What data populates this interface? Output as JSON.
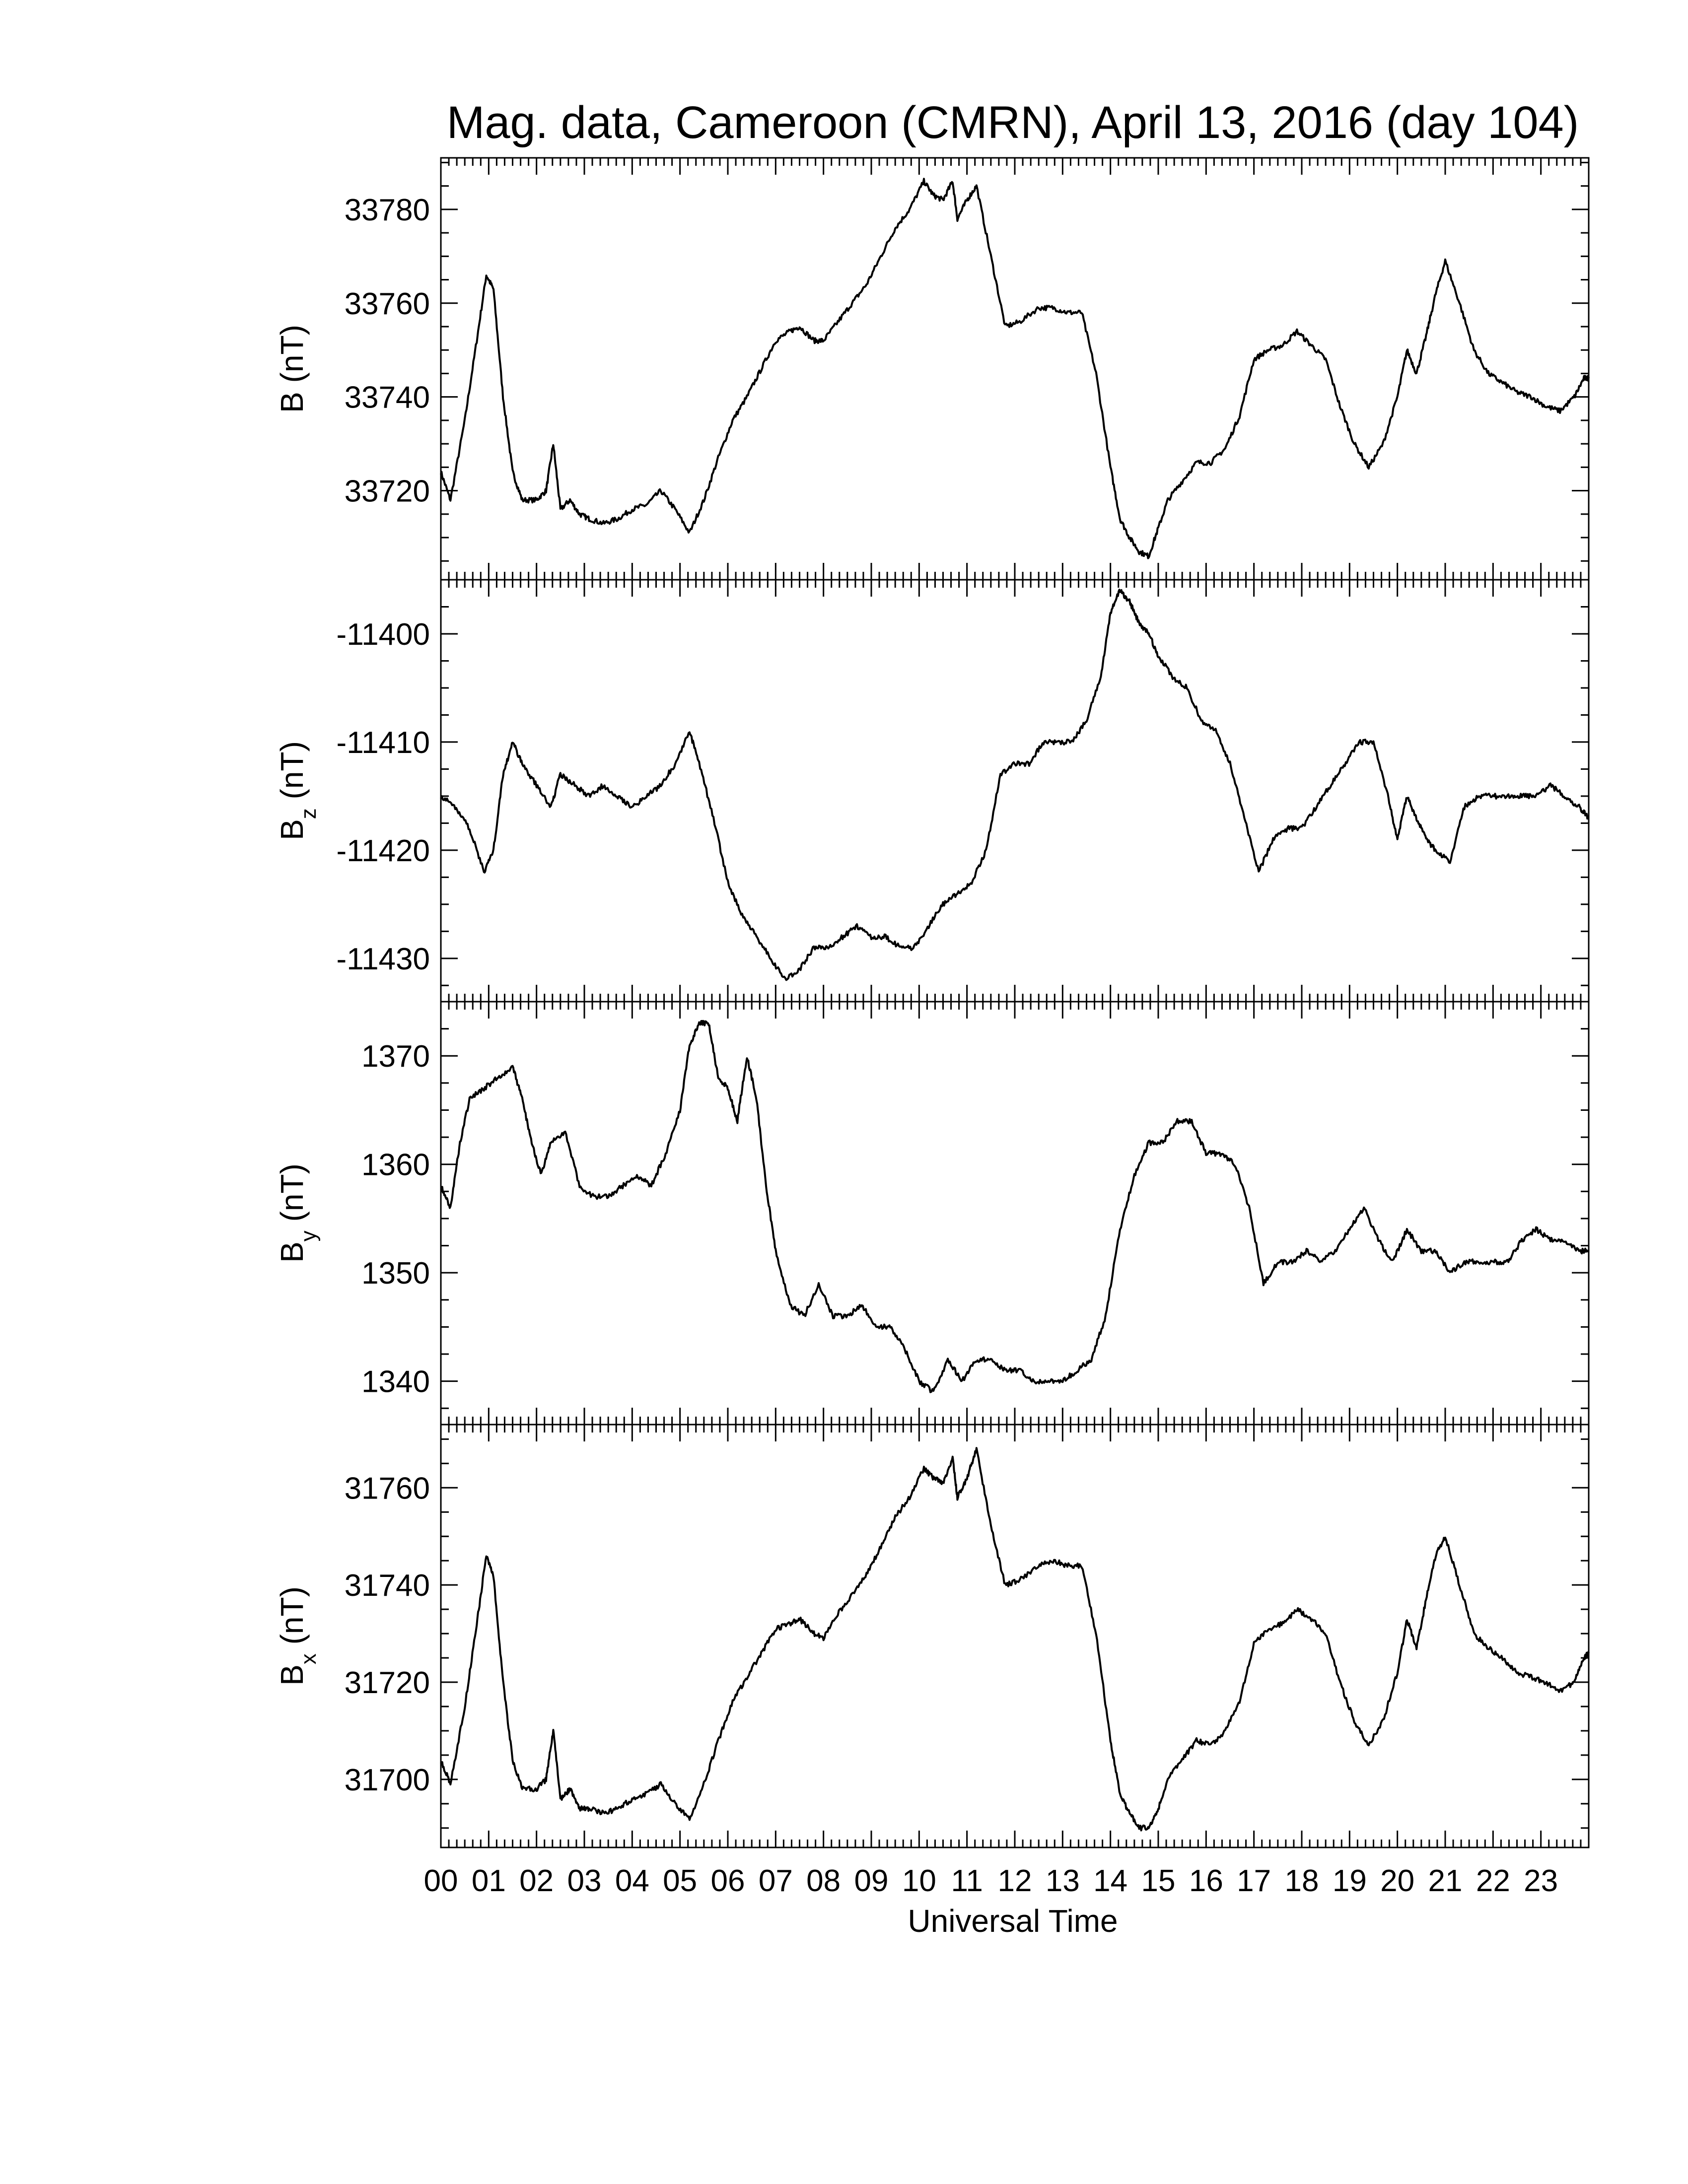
{
  "chart_data": {
    "type": "line",
    "title": "Mag. data, Cameroon (CMRN), April 13, 2016 (day 104)",
    "xlabel": "Universal Time",
    "xlim": [
      0,
      24
    ],
    "xticks": [
      "00",
      "01",
      "02",
      "03",
      "04",
      "05",
      "06",
      "07",
      "08",
      "09",
      "10",
      "11",
      "12",
      "13",
      "14",
      "15",
      "16",
      "17",
      "18",
      "19",
      "20",
      "21",
      "22",
      "23"
    ],
    "panels": [
      {
        "id": "B",
        "ylabel": "B",
        "ylabel_sub": "",
        "ylabel_unit": " (nT)",
        "ylim": [
          33701,
          33791
        ],
        "yticks": [
          33720,
          33740,
          33760,
          33780
        ],
        "x": [
          0.0,
          0.2,
          0.5,
          0.75,
          0.95,
          1.1,
          1.3,
          1.5,
          1.7,
          2.0,
          2.2,
          2.35,
          2.5,
          2.7,
          2.9,
          3.1,
          3.4,
          3.7,
          4.0,
          4.3,
          4.6,
          4.9,
          5.2,
          5.5,
          5.8,
          6.1,
          6.4,
          6.7,
          7.0,
          7.3,
          7.5,
          7.8,
          8.0,
          8.3,
          8.6,
          8.9,
          9.2,
          9.5,
          9.8,
          10.1,
          10.3,
          10.5,
          10.7,
          10.8,
          11.0,
          11.2,
          11.5,
          11.8,
          12.1,
          12.5,
          12.8,
          13.1,
          13.4,
          13.7,
          14.0,
          14.2,
          14.4,
          14.6,
          14.8,
          15.0,
          15.2,
          15.5,
          15.8,
          16.1,
          16.4,
          16.7,
          17.0,
          17.3,
          17.6,
          17.9,
          18.2,
          18.5,
          18.8,
          19.1,
          19.4,
          19.7,
          20.0,
          20.2,
          20.4,
          20.6,
          20.8,
          21.0,
          21.3,
          21.6,
          21.9,
          22.2,
          22.5,
          22.8,
          23.1,
          23.4,
          23.7,
          23.9,
          24.0
        ],
        "y": [
          33724,
          33718,
          33735,
          33752,
          33766,
          33763,
          33740,
          33724,
          33718,
          33718,
          33720,
          33730,
          33716,
          33718,
          33715,
          33714,
          33713,
          33714,
          33716,
          33717,
          33720,
          33716,
          33711,
          33718,
          33727,
          33735,
          33740,
          33746,
          33752,
          33754,
          33755,
          33752,
          33752,
          33756,
          33760,
          33764,
          33770,
          33776,
          33780,
          33786,
          33783,
          33782,
          33786,
          33778,
          33782,
          33785,
          33770,
          33755,
          33756,
          33759,
          33759,
          33758,
          33758,
          33745,
          33725,
          33714,
          33710,
          33707,
          33706,
          33712,
          33718,
          33722,
          33726,
          33726,
          33729,
          33736,
          33748,
          33750,
          33751,
          33754,
          33751,
          33748,
          33738,
          33730,
          33725,
          33730,
          33740,
          33750,
          33745,
          33753,
          33762,
          33769,
          33760,
          33750,
          33745,
          33743,
          33741,
          33740,
          33738,
          33737,
          33740,
          33744,
          33744
        ]
      },
      {
        "id": "Bz",
        "ylabel": "B",
        "ylabel_sub": "z",
        "ylabel_unit": " (nT)",
        "ylim": [
          -11434,
          -11395
        ],
        "yticks": [
          -11400,
          -11410,
          -11420,
          -11430
        ],
        "x": [
          0.0,
          0.3,
          0.6,
          0.9,
          1.1,
          1.3,
          1.5,
          1.7,
          2.0,
          2.3,
          2.5,
          2.8,
          3.1,
          3.4,
          3.7,
          4.0,
          4.3,
          4.6,
          4.9,
          5.2,
          5.4,
          5.7,
          6.0,
          6.3,
          6.6,
          6.9,
          7.2,
          7.5,
          7.8,
          8.1,
          8.4,
          8.7,
          9.0,
          9.3,
          9.6,
          9.9,
          10.2,
          10.5,
          10.8,
          11.1,
          11.4,
          11.7,
          12.0,
          12.3,
          12.6,
          12.9,
          13.2,
          13.5,
          13.8,
          14.0,
          14.2,
          14.4,
          14.6,
          14.8,
          15.0,
          15.3,
          15.6,
          15.9,
          16.2,
          16.5,
          16.8,
          17.1,
          17.4,
          17.7,
          18.0,
          18.3,
          18.6,
          18.9,
          19.2,
          19.5,
          19.8,
          20.0,
          20.2,
          20.4,
          20.6,
          20.8,
          21.1,
          21.4,
          21.7,
          22.0,
          22.3,
          22.6,
          22.9,
          23.2,
          23.5,
          23.8,
          24.0
        ],
        "y": [
          -11415,
          -11416,
          -11418,
          -11422,
          -11420,
          -11413,
          -11410,
          -11412,
          -11414,
          -11416,
          -11413,
          -11414,
          -11415,
          -11414,
          -11415,
          -11416,
          -11415,
          -11414,
          -11412,
          -11409,
          -11412,
          -11417,
          -11423,
          -11426,
          -11428,
          -11430,
          -11432,
          -11431,
          -11429,
          -11429,
          -11428,
          -11427,
          -11428,
          -11428,
          -11429,
          -11429,
          -11427,
          -11425,
          -11424,
          -11423,
          -11420,
          -11413,
          -11412,
          -11412,
          -11410,
          -11410,
          -11410,
          -11408,
          -11404,
          -11398,
          -11396,
          -11397,
          -11399,
          -11400,
          -11402,
          -11404,
          -11405,
          -11408,
          -11409,
          -11412,
          -11417,
          -11422,
          -11419,
          -11418,
          -11418,
          -11416,
          -11414,
          -11412,
          -11410,
          -11410,
          -11415,
          -11419,
          -11415,
          -11417,
          -11419,
          -11420,
          -11421,
          -11416,
          -11415,
          -11415,
          -11415,
          -11415,
          -11415,
          -11414,
          -11415,
          -11416,
          -11417
        ]
      },
      {
        "id": "By",
        "ylabel": "B",
        "ylabel_sub": "y",
        "ylabel_unit": " (nT)",
        "ylim": [
          1336,
          1375
        ],
        "yticks": [
          1340,
          1350,
          1360,
          1370
        ],
        "x": [
          0.0,
          0.2,
          0.4,
          0.6,
          0.9,
          1.2,
          1.5,
          1.7,
          1.9,
          2.1,
          2.3,
          2.6,
          2.9,
          3.2,
          3.5,
          3.8,
          4.1,
          4.4,
          4.7,
          5.0,
          5.2,
          5.4,
          5.6,
          5.8,
          6.0,
          6.2,
          6.4,
          6.6,
          6.8,
          7.0,
          7.3,
          7.6,
          7.9,
          8.2,
          8.5,
          8.8,
          9.1,
          9.4,
          9.7,
          10.0,
          10.3,
          10.6,
          10.9,
          11.2,
          11.5,
          11.8,
          12.1,
          12.4,
          12.7,
          13.0,
          13.3,
          13.6,
          13.9,
          14.2,
          14.5,
          14.8,
          15.1,
          15.4,
          15.7,
          16.0,
          16.3,
          16.6,
          16.9,
          17.2,
          17.5,
          17.8,
          18.1,
          18.4,
          18.7,
          19.0,
          19.3,
          19.6,
          19.9,
          20.2,
          20.5,
          20.8,
          21.1,
          21.4,
          21.7,
          22.0,
          22.3,
          22.6,
          22.9,
          23.2,
          23.5,
          23.8,
          24.0
        ],
        "y": [
          1358,
          1356,
          1362,
          1366,
          1367,
          1368,
          1369,
          1366,
          1362,
          1359,
          1362,
          1363,
          1358,
          1357,
          1357,
          1358,
          1359,
          1358,
          1361,
          1365,
          1371,
          1373,
          1373,
          1368,
          1367,
          1364,
          1370,
          1366,
          1358,
          1352,
          1347,
          1346,
          1349,
          1346,
          1346,
          1347,
          1345,
          1345,
          1343,
          1340,
          1339,
          1342,
          1340,
          1342,
          1342,
          1341,
          1341,
          1340,
          1340,
          1340,
          1341,
          1342,
          1346,
          1354,
          1359,
          1362,
          1362,
          1364,
          1364,
          1361,
          1361,
          1360,
          1356,
          1349,
          1351,
          1351,
          1352,
          1351,
          1352,
          1354,
          1356,
          1353,
          1351,
          1354,
          1352,
          1352,
          1350,
          1351,
          1351,
          1351,
          1351,
          1353,
          1354,
          1353,
          1353,
          1352,
          1352
        ]
      },
      {
        "id": "Bx",
        "ylabel": "B",
        "ylabel_sub": "x",
        "ylabel_unit": " (nT)",
        "ylim": [
          1686,
          1773
        ],
        "ylim_note": "",
        "ylim_full": [
          31686,
          31773
        ],
        "yticks": [
          31700,
          31720,
          31740,
          31760
        ],
        "x": [
          0.0,
          0.2,
          0.5,
          0.75,
          0.95,
          1.1,
          1.3,
          1.5,
          1.7,
          2.0,
          2.2,
          2.35,
          2.5,
          2.7,
          2.9,
          3.1,
          3.4,
          3.7,
          4.0,
          4.3,
          4.6,
          4.9,
          5.2,
          5.5,
          5.8,
          6.1,
          6.4,
          6.7,
          7.0,
          7.3,
          7.5,
          7.8,
          8.0,
          8.3,
          8.6,
          8.9,
          9.2,
          9.5,
          9.8,
          10.1,
          10.3,
          10.5,
          10.7,
          10.8,
          11.0,
          11.2,
          11.5,
          11.8,
          12.1,
          12.5,
          12.8,
          13.1,
          13.4,
          13.7,
          14.0,
          14.2,
          14.4,
          14.6,
          14.8,
          15.0,
          15.2,
          15.5,
          15.8,
          16.1,
          16.4,
          16.7,
          17.0,
          17.3,
          17.6,
          17.9,
          18.2,
          18.5,
          18.8,
          19.1,
          19.4,
          19.7,
          20.0,
          20.2,
          20.4,
          20.6,
          20.8,
          21.0,
          21.3,
          21.6,
          21.9,
          22.2,
          22.5,
          22.8,
          23.1,
          23.4,
          23.7,
          23.9,
          24.0
        ],
        "y": [
          31704,
          31699,
          31715,
          31732,
          31746,
          31742,
          31720,
          31704,
          31698,
          31698,
          31700,
          31710,
          31696,
          31698,
          31694,
          31694,
          31693,
          31694,
          31696,
          31697,
          31699,
          31695,
          31692,
          31699,
          31708,
          31716,
          31721,
          31726,
          31731,
          31732,
          31733,
          31730,
          31729,
          31734,
          31738,
          31742,
          31748,
          31754,
          31758,
          31764,
          31762,
          31761,
          31766,
          31758,
          31762,
          31768,
          31752,
          31740,
          31741,
          31744,
          31745,
          31744,
          31744,
          31730,
          31708,
          31697,
          31693,
          31690,
          31690,
          31694,
          31700,
          31704,
          31708,
          31707,
          31710,
          31716,
          31728,
          31731,
          31732,
          31735,
          31733,
          31730,
          31720,
          31712,
          31707,
          31712,
          31722,
          31733,
          31727,
          31737,
          31746,
          31750,
          31740,
          31730,
          31727,
          31725,
          31722,
          31721,
          31720,
          31718,
          31720,
          31725,
          31726
        ]
      }
    ]
  }
}
